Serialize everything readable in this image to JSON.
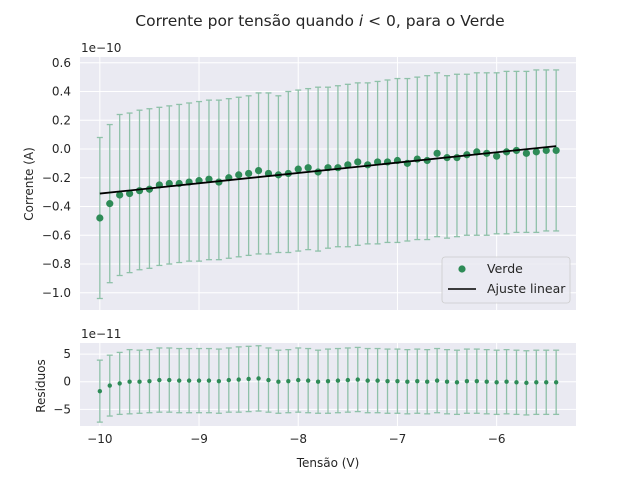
{
  "chart_data": [
    {
      "type": "scatter",
      "title_prefix": "Corrente por tensão quando ",
      "title_var": "i",
      "title_suffix": " < 0, para o Verde",
      "xlabel": "",
      "ylabel": "Corrente (A)",
      "offset_text": "1e−10",
      "xlim": [
        -10.2,
        -5.2
      ],
      "ylim": [
        -1.12,
        0.64
      ],
      "yticks": [
        -1.0,
        -0.8,
        -0.6,
        -0.4,
        -0.2,
        0.0,
        0.2,
        0.4,
        0.6
      ],
      "ytick_labels": [
        "−1.0",
        "−0.8",
        "−0.6",
        "−0.4",
        "−0.2",
        "0.0",
        "0.2",
        "0.4",
        "0.6"
      ],
      "xticks": [
        -10,
        -9,
        -8,
        -7,
        -6
      ],
      "grid": true,
      "legend_position": "lower-right",
      "colors": {
        "points": "#2e8b57",
        "errorbars": "#8fc1a9",
        "fit": "#000000",
        "background": "#eaeaf2",
        "grid": "#ffffff"
      },
      "series": [
        {
          "name": "Verde",
          "kind": "scatter-errorbar",
          "x": [
            -10.0,
            -9.9,
            -9.8,
            -9.7,
            -9.6,
            -9.5,
            -9.4,
            -9.3,
            -9.2,
            -9.1,
            -9.0,
            -8.9,
            -8.8,
            -8.7,
            -8.6,
            -8.5,
            -8.4,
            -8.3,
            -8.2,
            -8.1,
            -8.0,
            -7.9,
            -7.8,
            -7.7,
            -7.6,
            -7.5,
            -7.4,
            -7.3,
            -7.2,
            -7.1,
            -7.0,
            -6.9,
            -6.8,
            -6.7,
            -6.6,
            -6.5,
            -6.4,
            -6.3,
            -6.2,
            -6.1,
            -6.0,
            -5.9,
            -5.8,
            -5.7,
            -5.6,
            -5.5,
            -5.4
          ],
          "y": [
            -0.48,
            -0.38,
            -0.32,
            -0.31,
            -0.29,
            -0.28,
            -0.25,
            -0.24,
            -0.24,
            -0.23,
            -0.22,
            -0.21,
            -0.23,
            -0.2,
            -0.18,
            -0.17,
            -0.15,
            -0.17,
            -0.18,
            -0.17,
            -0.14,
            -0.13,
            -0.16,
            -0.13,
            -0.13,
            -0.11,
            -0.09,
            -0.11,
            -0.09,
            -0.09,
            -0.08,
            -0.1,
            -0.07,
            -0.08,
            -0.03,
            -0.06,
            -0.06,
            -0.04,
            -0.02,
            -0.03,
            -0.05,
            -0.02,
            -0.01,
            -0.03,
            -0.02,
            -0.01,
            -0.01
          ],
          "yerr_low": [
            -1.04,
            -0.93,
            -0.88,
            -0.86,
            -0.84,
            -0.83,
            -0.81,
            -0.8,
            -0.79,
            -0.78,
            -0.78,
            -0.77,
            -0.77,
            -0.76,
            -0.75,
            -0.74,
            -0.73,
            -0.73,
            -0.72,
            -0.72,
            -0.71,
            -0.7,
            -0.71,
            -0.69,
            -0.68,
            -0.68,
            -0.67,
            -0.66,
            -0.66,
            -0.65,
            -0.65,
            -0.64,
            -0.63,
            -0.63,
            -0.61,
            -0.62,
            -0.61,
            -0.6,
            -0.6,
            -0.6,
            -0.59,
            -0.59,
            -0.58,
            -0.58,
            -0.58,
            -0.57,
            -0.57
          ],
          "yerr_high": [
            0.08,
            0.17,
            0.24,
            0.25,
            0.27,
            0.28,
            0.29,
            0.3,
            0.31,
            0.32,
            0.33,
            0.34,
            0.34,
            0.35,
            0.36,
            0.37,
            0.39,
            0.39,
            0.37,
            0.4,
            0.41,
            0.42,
            0.43,
            0.43,
            0.44,
            0.45,
            0.46,
            0.46,
            0.47,
            0.48,
            0.49,
            0.49,
            0.5,
            0.51,
            0.53,
            0.51,
            0.52,
            0.52,
            0.53,
            0.53,
            0.53,
            0.54,
            0.54,
            0.54,
            0.55,
            0.55,
            0.55
          ]
        },
        {
          "name": "Ajuste linear",
          "kind": "line",
          "x": [
            -10.0,
            -5.4
          ],
          "y": [
            -0.31,
            0.02
          ]
        }
      ]
    },
    {
      "type": "scatter",
      "xlabel": "Tensão (V)",
      "ylabel": "Resíduos",
      "offset_text": "1e−11",
      "xlim": [
        -10.2,
        -5.2
      ],
      "ylim": [
        -8,
        7
      ],
      "yticks": [
        -5,
        0,
        5
      ],
      "ytick_labels": [
        "−5",
        "0",
        "5"
      ],
      "xticks": [
        -10,
        -9,
        -8,
        -7,
        -6
      ],
      "xtick_labels": [
        "−10",
        "−9",
        "−8",
        "−7",
        "−6"
      ],
      "grid": true,
      "series": [
        {
          "name": "",
          "kind": "scatter-errorbar",
          "x": [
            -10.0,
            -9.9,
            -9.8,
            -9.7,
            -9.6,
            -9.5,
            -9.4,
            -9.3,
            -9.2,
            -9.1,
            -9.0,
            -8.9,
            -8.8,
            -8.7,
            -8.6,
            -8.5,
            -8.4,
            -8.3,
            -8.2,
            -8.1,
            -8.0,
            -7.9,
            -7.8,
            -7.7,
            -7.6,
            -7.5,
            -7.4,
            -7.3,
            -7.2,
            -7.1,
            -7.0,
            -6.9,
            -6.8,
            -6.7,
            -6.6,
            -6.5,
            -6.4,
            -6.3,
            -6.2,
            -6.1,
            -6.0,
            -5.9,
            -5.8,
            -5.7,
            -5.6,
            -5.5,
            -5.4
          ],
          "y": [
            -1.7,
            -0.7,
            -0.3,
            0.0,
            0.0,
            0.1,
            0.3,
            0.3,
            0.2,
            0.2,
            0.2,
            0.2,
            0.1,
            0.3,
            0.4,
            0.5,
            0.6,
            0.3,
            0.0,
            0.1,
            0.3,
            0.2,
            0.0,
            0.1,
            0.2,
            0.3,
            0.4,
            0.2,
            0.2,
            0.1,
            0.1,
            0.0,
            0.1,
            0.0,
            0.2,
            0.0,
            -0.1,
            0.1,
            0.1,
            0.0,
            -0.1,
            0.0,
            -0.1,
            -0.2,
            -0.1,
            -0.1,
            -0.1
          ],
          "yerr_low": [
            -7.3,
            -6.2,
            -5.9,
            -5.8,
            -5.7,
            -5.6,
            -5.5,
            -5.5,
            -5.6,
            -5.6,
            -5.6,
            -5.6,
            -5.7,
            -5.5,
            -5.5,
            -5.4,
            -5.3,
            -5.5,
            -5.7,
            -5.6,
            -5.5,
            -5.6,
            -5.7,
            -5.7,
            -5.6,
            -5.5,
            -5.4,
            -5.6,
            -5.6,
            -5.7,
            -5.7,
            -5.8,
            -5.7,
            -5.8,
            -5.6,
            -5.8,
            -5.9,
            -5.7,
            -5.7,
            -5.8,
            -5.9,
            -5.8,
            -5.9,
            -6.0,
            -5.9,
            -5.9,
            -5.9
          ],
          "yerr_high": [
            3.9,
            4.8,
            5.3,
            5.8,
            5.7,
            5.8,
            6.1,
            6.1,
            6.0,
            6.0,
            6.0,
            6.0,
            5.9,
            6.1,
            6.3,
            6.4,
            6.5,
            6.1,
            5.7,
            5.8,
            6.1,
            6.0,
            5.7,
            5.9,
            6.0,
            6.1,
            6.2,
            6.0,
            6.0,
            5.9,
            5.9,
            5.8,
            5.9,
            5.8,
            6.0,
            5.8,
            5.7,
            5.9,
            5.9,
            5.8,
            5.7,
            5.8,
            5.7,
            5.6,
            5.7,
            5.7,
            5.7
          ]
        }
      ]
    }
  ]
}
